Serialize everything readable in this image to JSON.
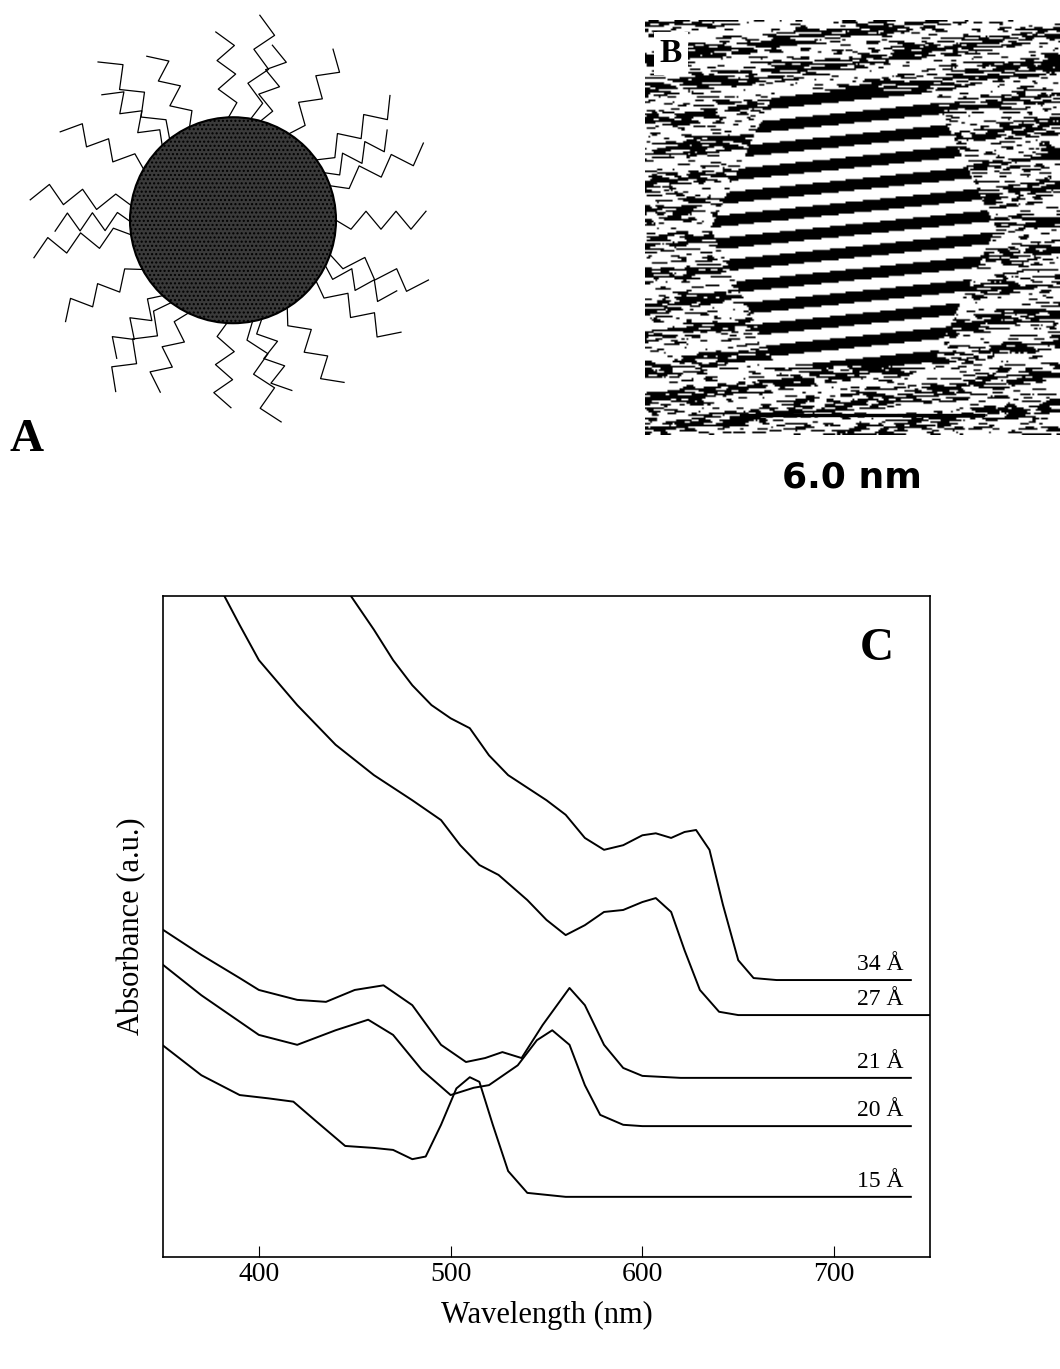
{
  "chart_data": {
    "type": "line",
    "panel_label": "C",
    "xlabel": "Wavelength (nm)",
    "ylabel": "Absorbance (a.u.)",
    "xlim": [
      350,
      750
    ],
    "xticks": [
      400,
      500,
      600,
      700
    ],
    "ylim": [
      0,
      100
    ],
    "yticks": [],
    "tick_labels": "x",
    "color": "#000000",
    "series": [
      {
        "name": "34 Å",
        "x": [
          448,
          460,
          470,
          480,
          490,
          500,
          510,
          520,
          530,
          540,
          550,
          560,
          570,
          580,
          590,
          600,
          607,
          615,
          622,
          628,
          635,
          642,
          650,
          658,
          670,
          740
        ],
        "values": [
          100,
          94.9,
          90.3,
          86.5,
          83.5,
          81.5,
          80.0,
          75.9,
          72.9,
          71.0,
          69.1,
          66.9,
          63.4,
          61.6,
          62.3,
          63.8,
          64.1,
          63.4,
          64.3,
          64.6,
          61.6,
          53.3,
          44.9,
          42.2,
          41.9,
          41.9
        ]
      },
      {
        "name": "27 Å",
        "x": [
          382,
          390,
          400,
          420,
          440,
          460,
          480,
          495,
          505,
          515,
          525,
          540,
          550,
          560,
          570,
          580,
          590,
          600,
          607,
          615,
          622,
          630,
          640,
          650,
          750
        ],
        "values": [
          100,
          95.6,
          90.3,
          83.5,
          77.5,
          72.9,
          69.1,
          66.1,
          62.3,
          59.3,
          57.8,
          54.0,
          51.0,
          48.7,
          50.2,
          52.2,
          52.5,
          53.7,
          54.3,
          52.2,
          46.4,
          40.4,
          37.1,
          36.6,
          36.6
        ]
      },
      {
        "name": "21 Å",
        "x": [
          350,
          370,
          390,
          400,
          420,
          435,
          450,
          465,
          480,
          495,
          508,
          518,
          527,
          537,
          548,
          562,
          570,
          580,
          590,
          600,
          620,
          740
        ],
        "values": [
          49.5,
          45.7,
          42.2,
          40.4,
          38.9,
          38.6,
          40.4,
          41.1,
          38.1,
          32.1,
          29.5,
          30.1,
          31.0,
          30.1,
          35.1,
          40.7,
          38.1,
          32.1,
          28.6,
          27.4,
          27.1,
          27.1
        ]
      },
      {
        "name": "20 Å",
        "x": [
          350,
          370,
          385,
          400,
          420,
          440,
          457,
          470,
          485,
          500,
          512,
          520,
          535,
          545,
          553,
          562,
          570,
          578,
          590,
          600,
          740
        ],
        "values": [
          44.2,
          39.6,
          36.6,
          33.6,
          32.1,
          34.3,
          35.9,
          33.6,
          28.3,
          24.5,
          25.6,
          26.0,
          29.0,
          32.8,
          34.3,
          32.1,
          26.0,
          21.5,
          20.0,
          19.8,
          19.8
        ]
      },
      {
        "name": "15 Å",
        "x": [
          350,
          370,
          390,
          405,
          418,
          430,
          445,
          460,
          470,
          480,
          487,
          495,
          503,
          510,
          515,
          522,
          530,
          540,
          560,
          740
        ],
        "values": [
          32.0,
          27.5,
          24.5,
          24.0,
          23.5,
          20.5,
          16.8,
          16.5,
          16.2,
          14.8,
          15.2,
          20.0,
          25.5,
          27.2,
          26.5,
          20.0,
          13.0,
          9.7,
          9.1,
          9.1
        ]
      }
    ]
  },
  "panels": {
    "A": {
      "label": "A"
    },
    "B": {
      "label": "B",
      "scale_bar": "6.0 nm"
    }
  }
}
